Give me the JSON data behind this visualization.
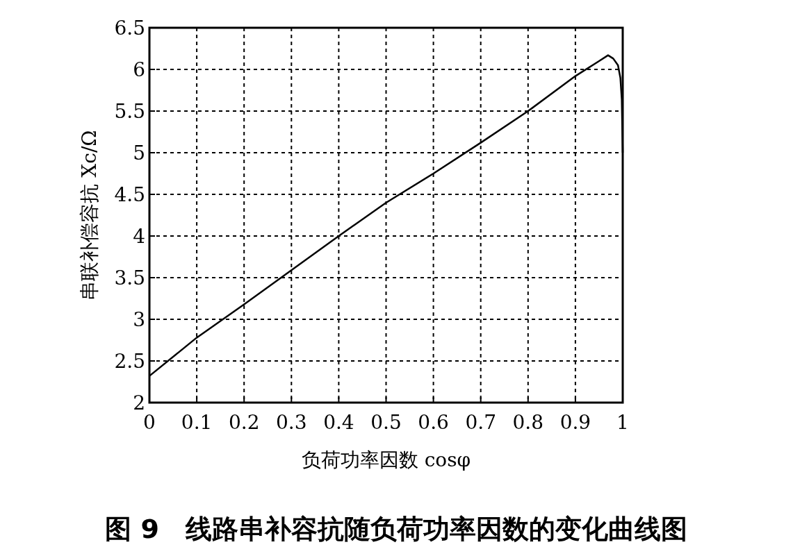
{
  "chart_data": {
    "type": "line",
    "title": "图 9　线路串补容抗随负荷功率因数的变化曲线图",
    "xlabel": "负荷功率因数 cosφ",
    "ylabel": "串联补偿容抗 Xc/Ω",
    "x": [
      0,
      0.1,
      0.2,
      0.3,
      0.4,
      0.5,
      0.6,
      0.7,
      0.8,
      0.9,
      0.95,
      0.969,
      0.98,
      0.99,
      0.995,
      0.998,
      1.0
    ],
    "series": [
      {
        "color": "#000000",
        "values": [
          2.32,
          2.78,
          3.18,
          3.59,
          4.0,
          4.4,
          4.75,
          5.12,
          5.5,
          5.92,
          6.1,
          6.17,
          6.13,
          6.05,
          5.9,
          5.64,
          5.0
        ]
      }
    ],
    "xlim": [
      0,
      1
    ],
    "xticks": [
      0,
      0.1,
      0.2,
      0.3,
      0.4,
      0.5,
      0.6,
      0.7,
      0.8,
      0.9,
      1
    ],
    "ylim": [
      2,
      6.5
    ],
    "yticks": [
      2,
      2.5,
      3,
      3.5,
      4,
      4.5,
      5,
      5.5,
      6,
      6.5
    ],
    "grid": true,
    "line_style": "solid",
    "marker": "none"
  }
}
